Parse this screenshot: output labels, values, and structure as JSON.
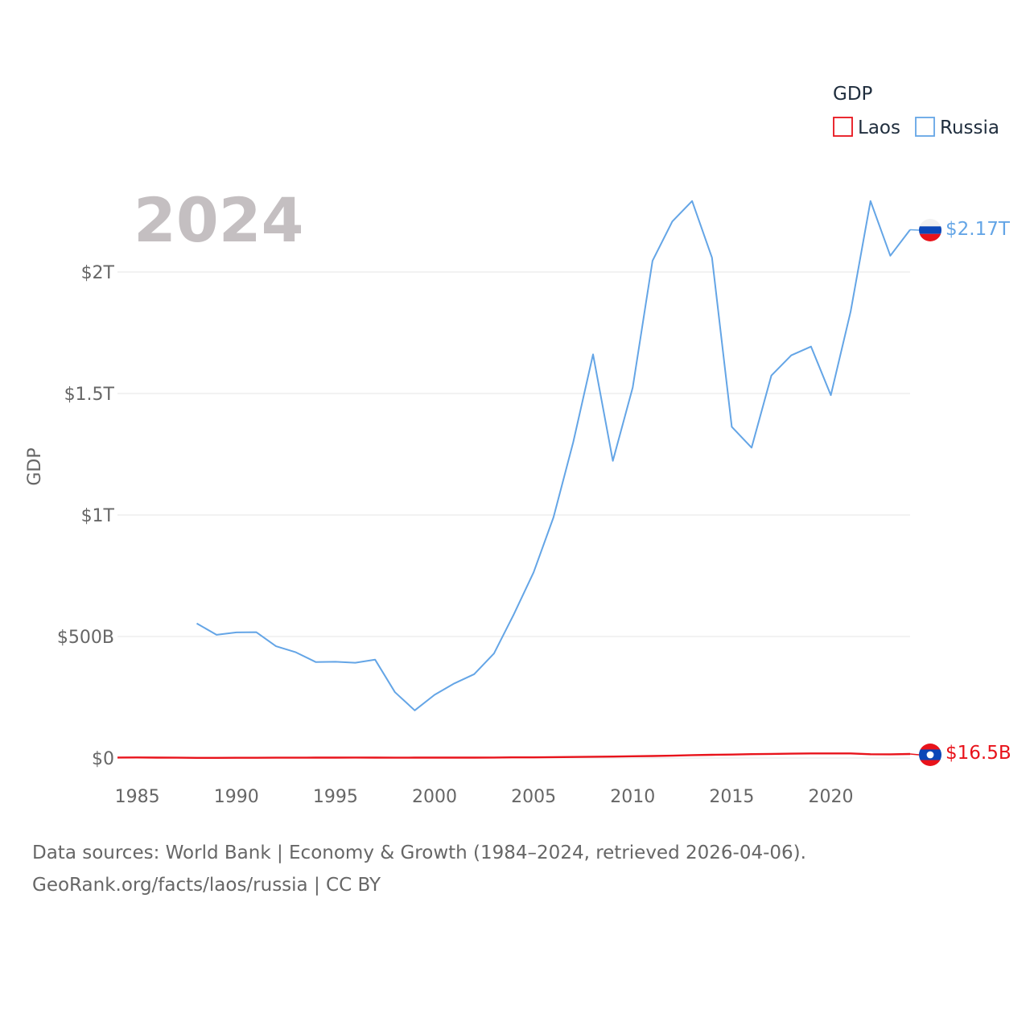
{
  "chart_data": {
    "type": "line",
    "title": "GDP",
    "year_label": "2024",
    "ylabel": "GDP",
    "xlim": [
      1984,
      2024
    ],
    "ylim": [
      0,
      2.3
    ],
    "x_ticks": [
      1985,
      1990,
      1995,
      2000,
      2005,
      2010,
      2015,
      2020
    ],
    "y_ticks": [
      {
        "value": 0,
        "label": "$0"
      },
      {
        "value": 0.5,
        "label": "$500B"
      },
      {
        "value": 1.0,
        "label": "$1T"
      },
      {
        "value": 1.5,
        "label": "$1.5T"
      },
      {
        "value": 2.0,
        "label": "$2T"
      }
    ],
    "units": "trillion USD",
    "series": [
      {
        "name": "Laos",
        "color": "#e8131b",
        "end_label": "$16.5B",
        "x": [
          1984,
          1985,
          1986,
          1987,
          1988,
          1989,
          1990,
          1991,
          1992,
          1993,
          1994,
          1995,
          1996,
          1997,
          1998,
          1999,
          2000,
          2001,
          2002,
          2003,
          2004,
          2005,
          2006,
          2007,
          2008,
          2009,
          2010,
          2011,
          2012,
          2013,
          2014,
          2015,
          2016,
          2017,
          2018,
          2019,
          2020,
          2021,
          2022,
          2023,
          2024
        ],
        "values": [
          0.0019,
          0.0023,
          0.0018,
          0.0012,
          0.0006,
          0.0007,
          0.0009,
          0.001,
          0.0012,
          0.0013,
          0.0015,
          0.0018,
          0.0019,
          0.0017,
          0.0013,
          0.0015,
          0.0017,
          0.0017,
          0.0018,
          0.0021,
          0.0025,
          0.0027,
          0.0035,
          0.0042,
          0.0054,
          0.0058,
          0.0072,
          0.0083,
          0.0095,
          0.0118,
          0.0133,
          0.0143,
          0.0158,
          0.0168,
          0.0179,
          0.0188,
          0.019,
          0.0188,
          0.0155,
          0.0153,
          0.0165
        ]
      },
      {
        "name": "Russia",
        "color": "#64a5e6",
        "end_label": "$2.17T",
        "x": [
          1988,
          1989,
          1990,
          1991,
          1992,
          1993,
          1994,
          1995,
          1996,
          1997,
          1998,
          1999,
          2000,
          2001,
          2002,
          2003,
          2004,
          2005,
          2006,
          2007,
          2008,
          2009,
          2010,
          2011,
          2012,
          2013,
          2014,
          2015,
          2016,
          2017,
          2018,
          2019,
          2020,
          2021,
          2022,
          2023,
          2024
        ],
        "values": [
          0.554,
          0.507,
          0.517,
          0.518,
          0.46,
          0.435,
          0.395,
          0.396,
          0.392,
          0.405,
          0.271,
          0.196,
          0.26,
          0.307,
          0.345,
          0.43,
          0.591,
          0.764,
          0.99,
          1.3,
          1.661,
          1.223,
          1.525,
          2.046,
          2.208,
          2.292,
          2.059,
          1.363,
          1.277,
          1.574,
          1.657,
          1.693,
          1.493,
          1.837,
          2.292,
          2.067,
          2.174
        ]
      }
    ],
    "legend": {
      "title": "GDP",
      "position": "top-right"
    }
  },
  "footer": {
    "line1": "Data sources: World Bank | Economy & Growth (1984–2024, retrieved 2026-04-06).",
    "line2": "GeoRank.org/facts/laos/russia | CC BY"
  }
}
